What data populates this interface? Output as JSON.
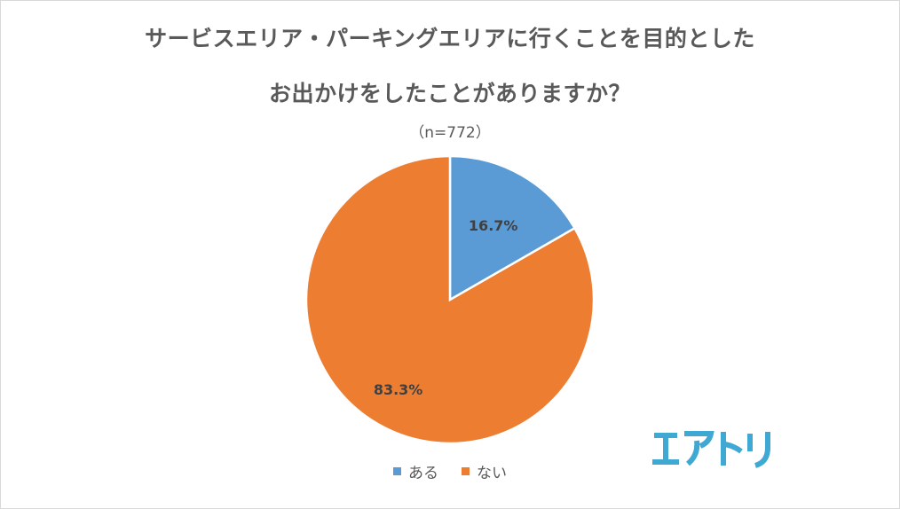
{
  "chart_data": {
    "type": "pie",
    "title_lines": [
      "サービスエリア・パーキングエリアに行くことを目的とした",
      "お出かけをしたことがありますか？"
    ],
    "subtitle": "（n=772）",
    "categories": [
      "ある",
      "ない"
    ],
    "values": [
      16.7,
      83.3
    ],
    "labels": [
      "16.7%",
      "83.3%"
    ],
    "colors": [
      "#5b9bd5",
      "#ed7d31"
    ],
    "legend_position": "bottom"
  },
  "logo": {
    "text": "エアトリ",
    "color": "#3fa9d4"
  }
}
